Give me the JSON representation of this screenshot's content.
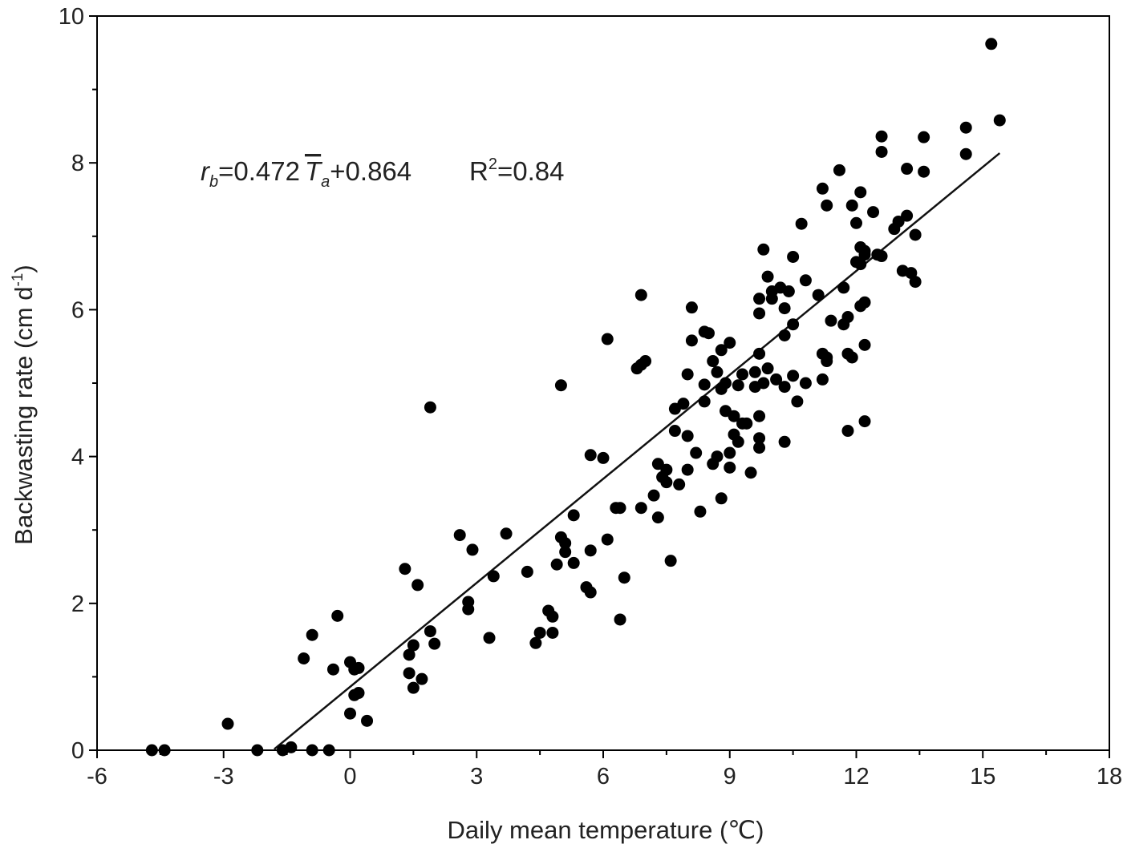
{
  "chart_data": {
    "type": "scatter",
    "xlabel": "Daily mean temperature (℃)",
    "ylabel": "Backwasting rate (cm d",
    "ylabel_sup": "-1",
    "ylabel_close": ")",
    "xlim": [
      -6,
      18
    ],
    "ylim": [
      0,
      10
    ],
    "xticks": [
      "-6",
      "-3",
      "0",
      "3",
      "6",
      "9",
      "12",
      "15",
      "18"
    ],
    "yticks": [
      "0",
      "2",
      "4",
      "6",
      "8",
      "10"
    ],
    "equation": {
      "r": "r",
      "r_sub": "b",
      "mid": "=0.472",
      "T": "T",
      "T_sub": "a",
      "tail": "+0.864",
      "R": "R",
      "R_sup": "2",
      "R_tail": "=0.84"
    },
    "fit_line": {
      "slope": 0.472,
      "intercept": 0.864,
      "x": [
        -1.8,
        15.4
      ]
    },
    "marker_color": "#000000",
    "line_color": "#111111",
    "points": [
      [
        -4.7,
        0
      ],
      [
        -4.4,
        0
      ],
      [
        -2.9,
        0.36
      ],
      [
        -2.2,
        0
      ],
      [
        -1.6,
        0
      ],
      [
        -1.4,
        0.04
      ],
      [
        -0.9,
        0
      ],
      [
        -0.5,
        0
      ],
      [
        -1.1,
        1.25
      ],
      [
        -0.9,
        1.57
      ],
      [
        -0.4,
        1.1
      ],
      [
        -0.3,
        1.83
      ],
      [
        0,
        1.2
      ],
      [
        0,
        0.5
      ],
      [
        0.1,
        1.1
      ],
      [
        0.2,
        1.12
      ],
      [
        0.2,
        0.78
      ],
      [
        0.4,
        0.4
      ],
      [
        0.1,
        0.75
      ],
      [
        1.3,
        2.47
      ],
      [
        1.4,
        1.3
      ],
      [
        1.4,
        1.05
      ],
      [
        1.5,
        1.43
      ],
      [
        1.5,
        0.85
      ],
      [
        1.6,
        2.25
      ],
      [
        1.7,
        0.97
      ],
      [
        1.9,
        4.67
      ],
      [
        1.9,
        1.62
      ],
      [
        2.0,
        1.45
      ],
      [
        2.6,
        2.93
      ],
      [
        2.8,
        2.02
      ],
      [
        2.8,
        1.92
      ],
      [
        2.9,
        2.73
      ],
      [
        3.3,
        1.53
      ],
      [
        3.4,
        2.37
      ],
      [
        3.7,
        2.95
      ],
      [
        4.2,
        2.43
      ],
      [
        4.4,
        1.46
      ],
      [
        4.5,
        1.6
      ],
      [
        4.7,
        1.9
      ],
      [
        4.8,
        1.82
      ],
      [
        4.8,
        1.6
      ],
      [
        4.9,
        2.53
      ],
      [
        5.0,
        4.97
      ],
      [
        5.0,
        2.9
      ],
      [
        5.1,
        2.82
      ],
      [
        5.1,
        2.7
      ],
      [
        5.3,
        3.2
      ],
      [
        5.3,
        2.55
      ],
      [
        5.6,
        2.22
      ],
      [
        5.7,
        2.15
      ],
      [
        5.7,
        2.72
      ],
      [
        5.7,
        4.02
      ],
      [
        6.0,
        3.98
      ],
      [
        6.1,
        2.87
      ],
      [
        6.1,
        5.6
      ],
      [
        6.3,
        3.3
      ],
      [
        6.4,
        3.3
      ],
      [
        6.4,
        1.78
      ],
      [
        6.5,
        2.35
      ],
      [
        6.8,
        5.2
      ],
      [
        6.9,
        5.25
      ],
      [
        6.9,
        6.2
      ],
      [
        6.9,
        3.3
      ],
      [
        7.0,
        5.3
      ],
      [
        7.2,
        3.47
      ],
      [
        7.3,
        3.17
      ],
      [
        7.3,
        3.9
      ],
      [
        7.4,
        3.72
      ],
      [
        7.5,
        3.82
      ],
      [
        7.5,
        3.65
      ],
      [
        7.6,
        2.58
      ],
      [
        7.7,
        4.65
      ],
      [
        7.7,
        4.35
      ],
      [
        7.8,
        3.62
      ],
      [
        7.9,
        4.72
      ],
      [
        8.0,
        4.28
      ],
      [
        8.0,
        3.82
      ],
      [
        8.0,
        5.12
      ],
      [
        8.1,
        5.58
      ],
      [
        8.1,
        6.03
      ],
      [
        8.2,
        4.05
      ],
      [
        8.3,
        3.25
      ],
      [
        8.4,
        4.98
      ],
      [
        8.4,
        4.75
      ],
      [
        8.4,
        5.7
      ],
      [
        8.5,
        5.68
      ],
      [
        8.6,
        5.3
      ],
      [
        8.6,
        3.9
      ],
      [
        8.7,
        4.0
      ],
      [
        8.7,
        5.15
      ],
      [
        8.8,
        5.45
      ],
      [
        8.8,
        4.92
      ],
      [
        8.8,
        3.43
      ],
      [
        8.9,
        5.0
      ],
      [
        8.9,
        4.62
      ],
      [
        9.0,
        5.55
      ],
      [
        9.0,
        4.05
      ],
      [
        9.0,
        3.85
      ],
      [
        9.1,
        4.55
      ],
      [
        9.1,
        4.3
      ],
      [
        9.2,
        4.97
      ],
      [
        9.2,
        4.2
      ],
      [
        9.3,
        5.12
      ],
      [
        9.3,
        4.45
      ],
      [
        9.4,
        4.45
      ],
      [
        9.5,
        3.78
      ],
      [
        9.6,
        5.15
      ],
      [
        9.6,
        4.95
      ],
      [
        9.7,
        6.15
      ],
      [
        9.7,
        5.95
      ],
      [
        9.7,
        5.4
      ],
      [
        9.7,
        4.55
      ],
      [
        9.7,
        4.25
      ],
      [
        9.7,
        4.12
      ],
      [
        9.8,
        6.82
      ],
      [
        9.8,
        5.0
      ],
      [
        9.9,
        6.45
      ],
      [
        9.9,
        5.2
      ],
      [
        10.0,
        6.25
      ],
      [
        10.0,
        6.15
      ],
      [
        10.1,
        5.05
      ],
      [
        10.2,
        6.3
      ],
      [
        10.3,
        6.02
      ],
      [
        10.3,
        5.65
      ],
      [
        10.3,
        4.2
      ],
      [
        10.3,
        4.95
      ],
      [
        10.4,
        6.25
      ],
      [
        10.5,
        6.72
      ],
      [
        10.5,
        5.8
      ],
      [
        10.5,
        5.1
      ],
      [
        10.6,
        4.75
      ],
      [
        10.7,
        7.17
      ],
      [
        10.8,
        6.4
      ],
      [
        10.8,
        5.0
      ],
      [
        11.1,
        6.2
      ],
      [
        11.2,
        7.65
      ],
      [
        11.2,
        5.4
      ],
      [
        11.2,
        5.05
      ],
      [
        11.3,
        7.42
      ],
      [
        11.3,
        5.35
      ],
      [
        11.3,
        5.3
      ],
      [
        11.4,
        5.85
      ],
      [
        11.6,
        7.9
      ],
      [
        11.7,
        6.3
      ],
      [
        11.7,
        5.8
      ],
      [
        11.8,
        5.9
      ],
      [
        11.8,
        4.35
      ],
      [
        11.8,
        5.4
      ],
      [
        11.9,
        7.42
      ],
      [
        11.9,
        5.35
      ],
      [
        12.0,
        6.65
      ],
      [
        12.0,
        7.18
      ],
      [
        12.1,
        6.62
      ],
      [
        12.1,
        6.05
      ],
      [
        12.1,
        7.6
      ],
      [
        12.1,
        6.85
      ],
      [
        12.2,
        6.8
      ],
      [
        12.2,
        6.75
      ],
      [
        12.2,
        6.1
      ],
      [
        12.2,
        4.48
      ],
      [
        12.2,
        5.52
      ],
      [
        12.4,
        7.33
      ],
      [
        12.5,
        6.75
      ],
      [
        12.6,
        8.36
      ],
      [
        12.6,
        6.73
      ],
      [
        12.6,
        8.15
      ],
      [
        12.9,
        7.1
      ],
      [
        13.0,
        7.2
      ],
      [
        13.1,
        6.53
      ],
      [
        13.2,
        7.28
      ],
      [
        13.2,
        7.92
      ],
      [
        13.3,
        6.5
      ],
      [
        13.4,
        6.38
      ],
      [
        13.4,
        7.02
      ],
      [
        13.6,
        7.88
      ],
      [
        13.6,
        8.35
      ],
      [
        14.6,
        8.48
      ],
      [
        14.6,
        8.12
      ],
      [
        15.2,
        9.62
      ],
      [
        15.4,
        8.58
      ]
    ]
  }
}
